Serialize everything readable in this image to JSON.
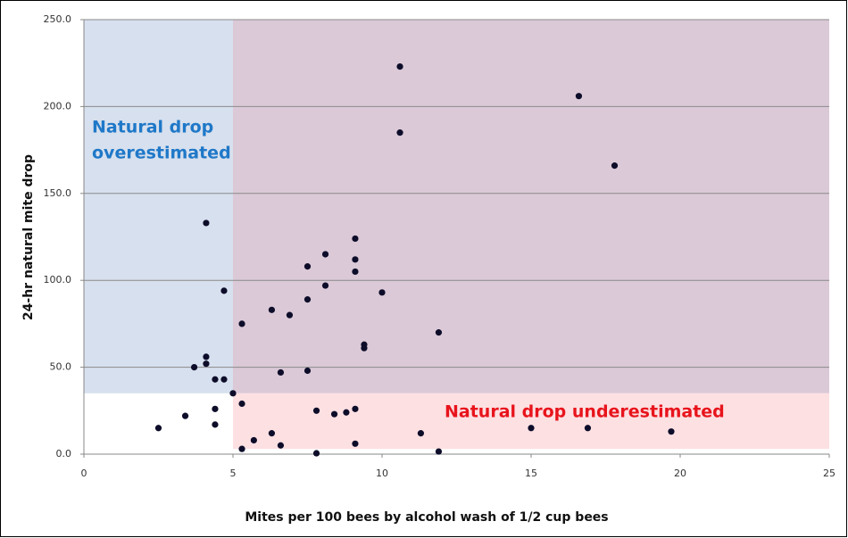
{
  "chart_data": {
    "type": "scatter",
    "x_label": "Mites per 100 bees by alcohol wash of 1/2 cup bees",
    "y_label": "24-hr natural mite drop",
    "xlim": [
      0,
      25
    ],
    "ylim": [
      0,
      250
    ],
    "xticks": [
      0,
      5,
      10,
      15,
      20,
      25
    ],
    "yticks": [
      {
        "value": 0,
        "label": "0.0"
      },
      {
        "value": 50,
        "label": "50.0"
      },
      {
        "value": 100,
        "label": "100.0"
      },
      {
        "value": 150,
        "label": "150.0"
      },
      {
        "value": 200,
        "label": "200.0"
      },
      {
        "value": 250,
        "label": "250.0"
      }
    ],
    "grid": true,
    "color": "#0d0d2a",
    "regions": [
      {
        "x": [
          0,
          5
        ],
        "y": [
          35,
          250
        ],
        "color": "#d7e0ee",
        "label": [
          "Natural drop",
          "overestimated"
        ],
        "label_color": "#1f78c8"
      },
      {
        "x": [
          5,
          25
        ],
        "y": [
          35,
          250
        ],
        "color": "#dbc9d7"
      },
      {
        "x": [
          5,
          25
        ],
        "y": [
          3,
          35
        ],
        "color": "#fde0e2",
        "label": [
          "Natural drop underestimated"
        ],
        "label_color": "#e8141c"
      }
    ],
    "x": [
      2.5,
      3.4,
      4.1,
      4.1,
      4.1,
      3.7,
      4.4,
      4.7,
      4.7,
      4.4,
      4.4,
      5.0,
      5.3,
      5.3,
      5.3,
      5.7,
      6.3,
      6.3,
      6.6,
      6.6,
      6.9,
      7.5,
      7.5,
      7.5,
      7.8,
      7.8,
      8.1,
      8.1,
      8.4,
      8.8,
      9.1,
      9.1,
      9.1,
      9.1,
      9.1,
      9.4,
      9.4,
      10.0,
      10.6,
      10.6,
      11.3,
      11.9,
      11.9,
      15.0,
      16.6,
      16.9,
      17.8,
      19.7
    ],
    "y": [
      15,
      22,
      133,
      56,
      52,
      50,
      43,
      43,
      94,
      26,
      17,
      35,
      75,
      29,
      3,
      8,
      83,
      12,
      47,
      5,
      80,
      108,
      89,
      48,
      25,
      0.5,
      115,
      97,
      23,
      24,
      124,
      112,
      105,
      26,
      6,
      63,
      61,
      93,
      223,
      185,
      12,
      70,
      1.5,
      15,
      206,
      15,
      166,
      13
    ]
  }
}
